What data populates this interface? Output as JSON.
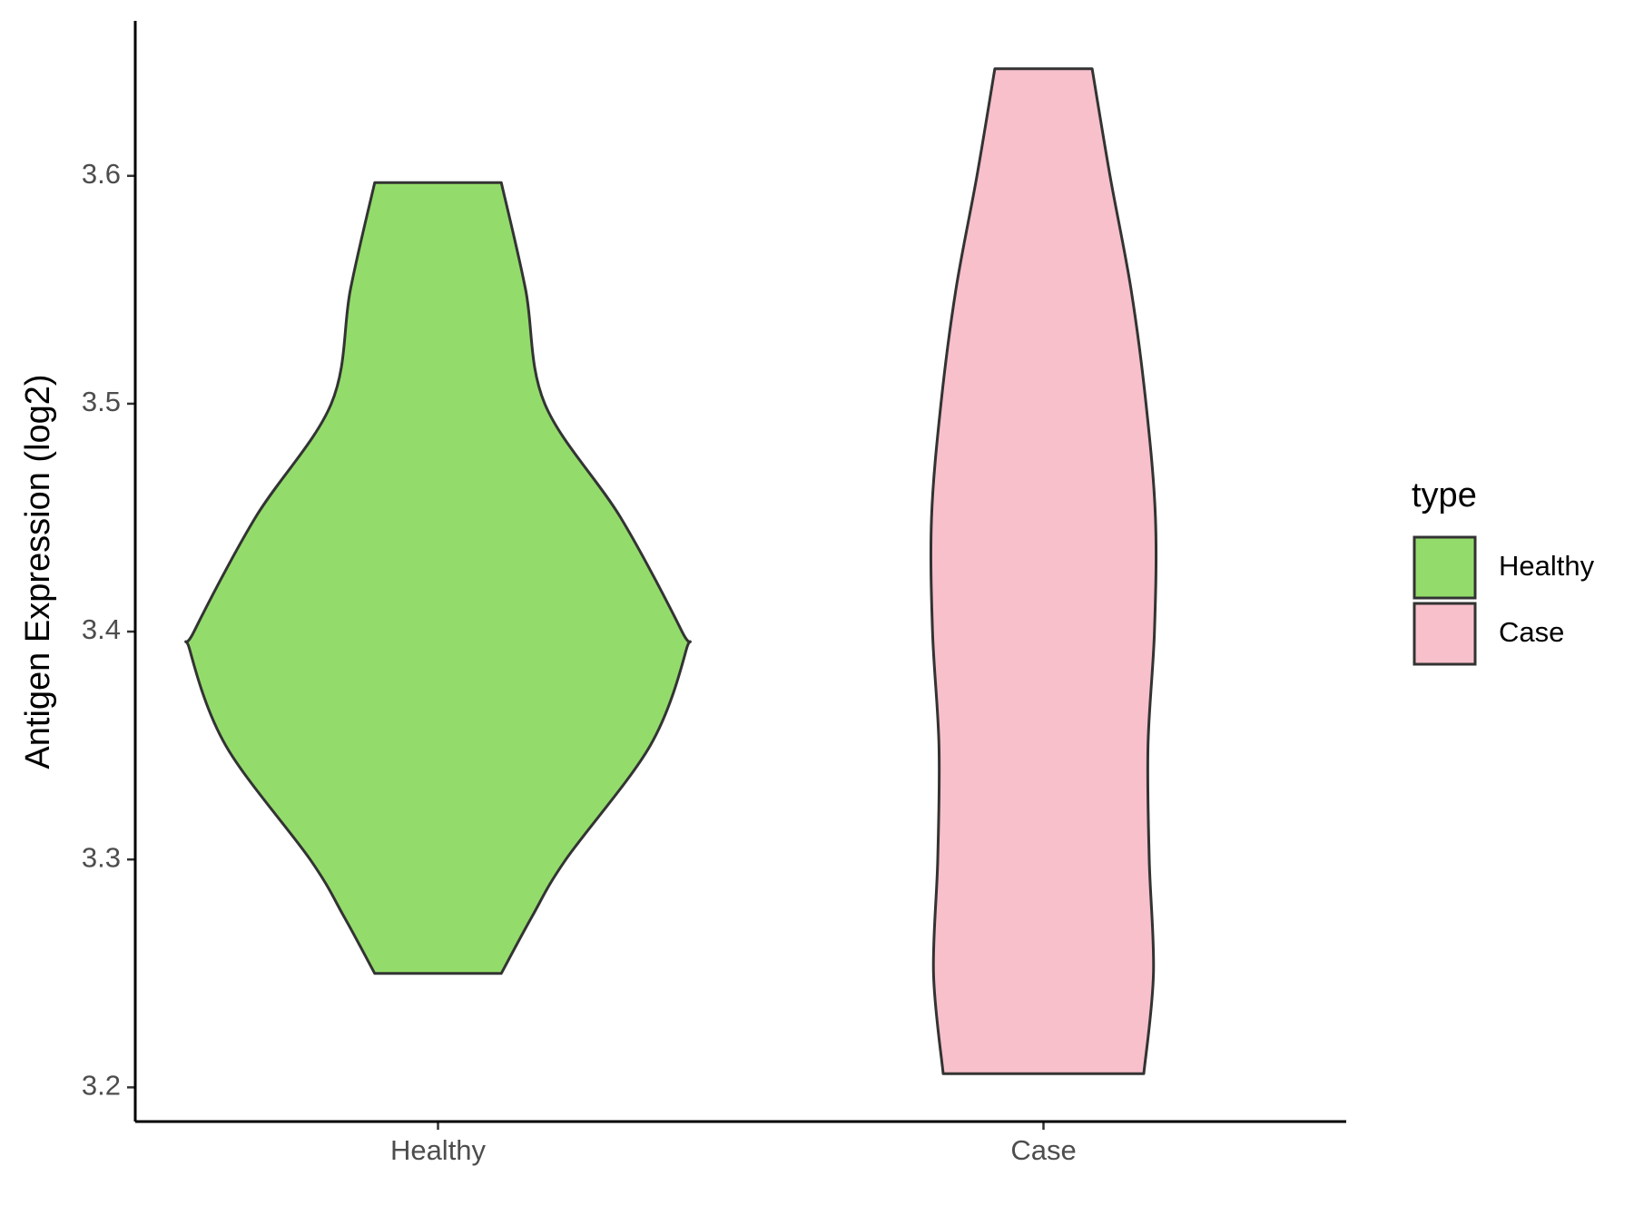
{
  "chart_data": {
    "type": "violin",
    "y_label": "Antigen Expression (log2)",
    "categories": [
      "Healthy",
      "Case"
    ],
    "series": [
      {
        "name": "Healthy",
        "color": "#93dc6b",
        "y": [
          3.597,
          3.55,
          3.5,
          3.45,
          3.4,
          3.392,
          3.35,
          3.3,
          3.275,
          3.25
        ],
        "density": [
          0.255,
          0.353,
          0.43,
          0.736,
          0.983,
          1.0,
          0.855,
          0.515,
          0.379,
          0.255
        ]
      },
      {
        "name": "Case",
        "color": "#f7c0cb",
        "y": [
          3.647,
          3.6,
          3.55,
          3.5,
          3.45,
          3.4,
          3.35,
          3.3,
          3.25,
          3.206
        ],
        "density": [
          0.196,
          0.268,
          0.353,
          0.413,
          0.451,
          0.447,
          0.421,
          0.426,
          0.443,
          0.404
        ]
      }
    ],
    "ylim": [
      3.185,
      3.668
    ],
    "yticks": [
      3.2,
      3.3,
      3.4,
      3.5,
      3.6
    ],
    "legend_title": "type",
    "legend_position": "right"
  }
}
